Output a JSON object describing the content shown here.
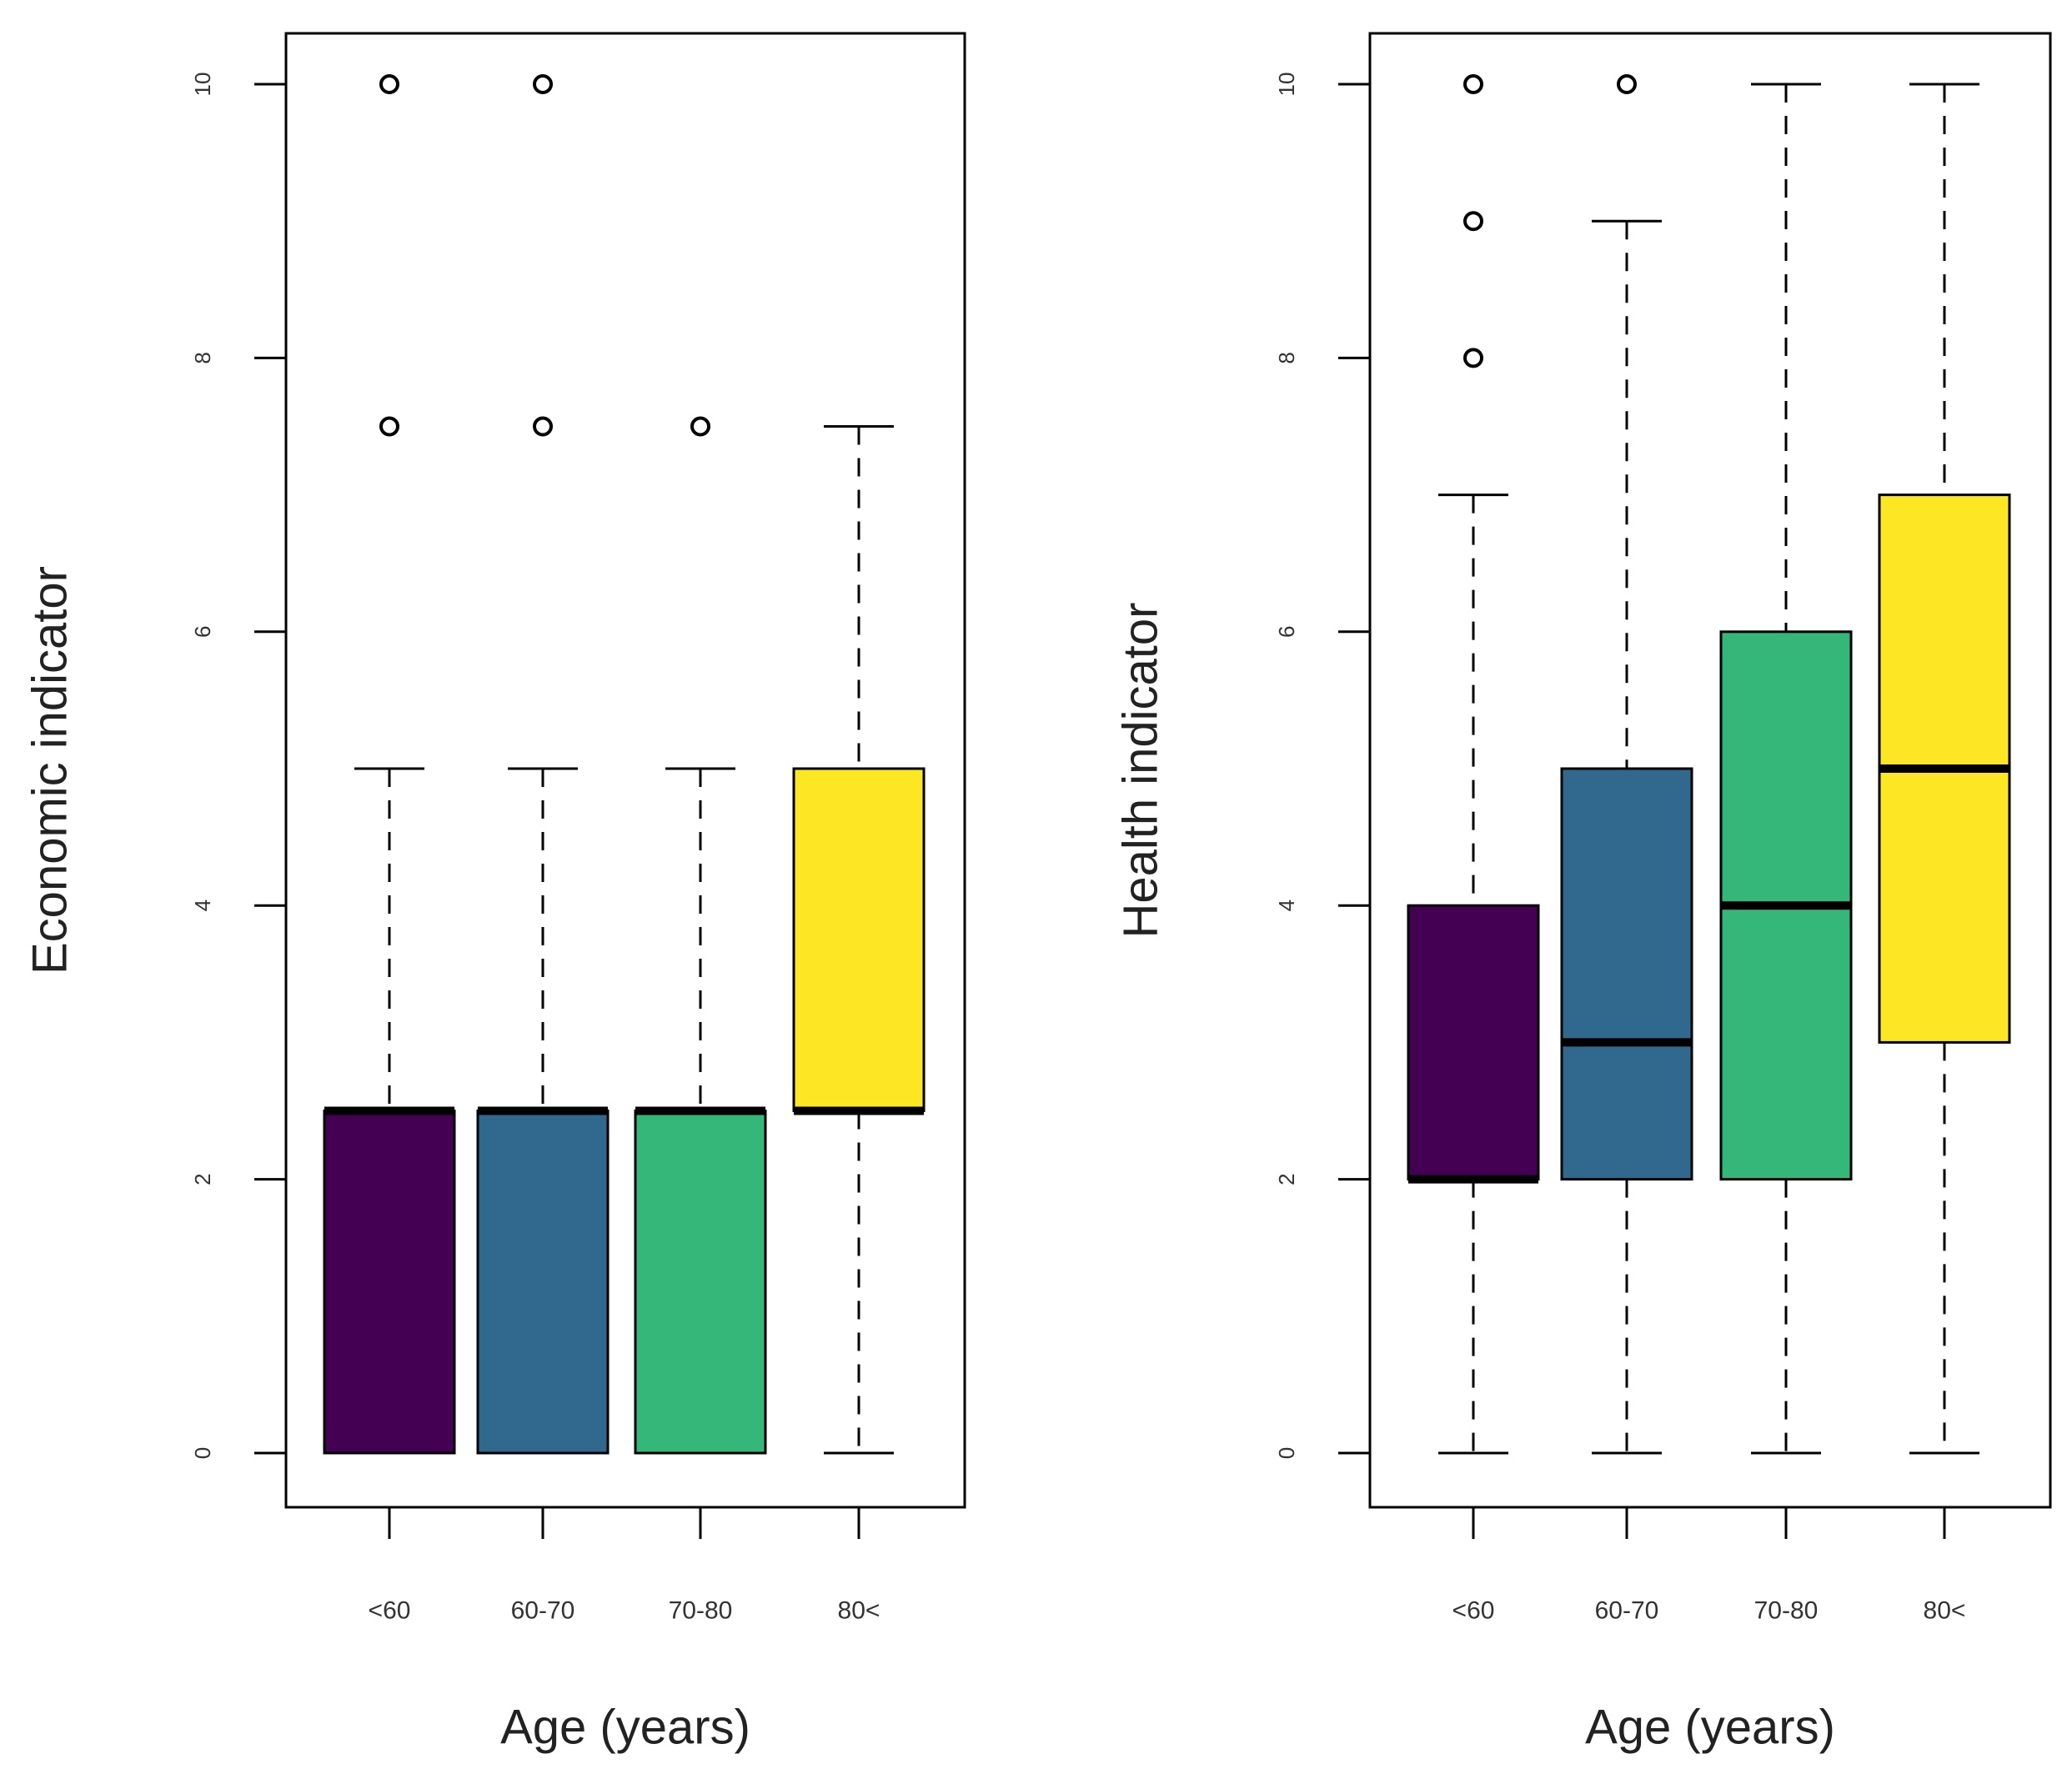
{
  "chart_data": [
    {
      "type": "box",
      "xlabel": "Age (years)",
      "ylabel": "Economic indicator",
      "categories": [
        "<60",
        "60-70",
        "70-80",
        "80<"
      ],
      "y_ticks": [
        "0",
        "2",
        "4",
        "6",
        "8",
        "10"
      ],
      "ylim": [
        -0.4,
        10.4
      ],
      "colors": [
        "#440154",
        "#31688E",
        "#35B779",
        "#FDE725"
      ],
      "boxes": [
        {
          "category": "<60",
          "whisker_low": 0,
          "q1": 0,
          "median": 2.5,
          "q3": 2.5,
          "whisker_high": 5,
          "outliers": [
            7.5,
            10
          ]
        },
        {
          "category": "60-70",
          "whisker_low": 0,
          "q1": 0,
          "median": 2.5,
          "q3": 2.5,
          "whisker_high": 5,
          "outliers": [
            7.5,
            10
          ]
        },
        {
          "category": "70-80",
          "whisker_low": 0,
          "q1": 0,
          "median": 2.5,
          "q3": 2.5,
          "whisker_high": 5,
          "outliers": [
            7.5
          ]
        },
        {
          "category": "80<",
          "whisker_low": 0,
          "q1": 2.5,
          "median": 2.5,
          "q3": 5,
          "whisker_high": 7.5,
          "outliers": []
        }
      ]
    },
    {
      "type": "box",
      "xlabel": "Age (years)",
      "ylabel": "Health indicator",
      "categories": [
        "<60",
        "60-70",
        "70-80",
        "80<"
      ],
      "y_ticks": [
        "0",
        "2",
        "4",
        "6",
        "8",
        "10"
      ],
      "ylim": [
        -0.4,
        10.4
      ],
      "colors": [
        "#440154",
        "#31688E",
        "#35B779",
        "#FDE725"
      ],
      "boxes": [
        {
          "category": "<60",
          "whisker_low": 0,
          "q1": 2,
          "median": 2,
          "q3": 4,
          "whisker_high": 7,
          "outliers": [
            8,
            9,
            10
          ]
        },
        {
          "category": "60-70",
          "whisker_low": 0,
          "q1": 2,
          "median": 3,
          "q3": 5,
          "whisker_high": 9,
          "outliers": [
            10
          ]
        },
        {
          "category": "70-80",
          "whisker_low": 0,
          "q1": 2,
          "median": 4,
          "q3": 6,
          "whisker_high": 10,
          "outliers": []
        },
        {
          "category": "80<",
          "whisker_low": 0,
          "q1": 3,
          "median": 5,
          "q3": 7,
          "whisker_high": 10,
          "outliers": []
        }
      ]
    }
  ]
}
